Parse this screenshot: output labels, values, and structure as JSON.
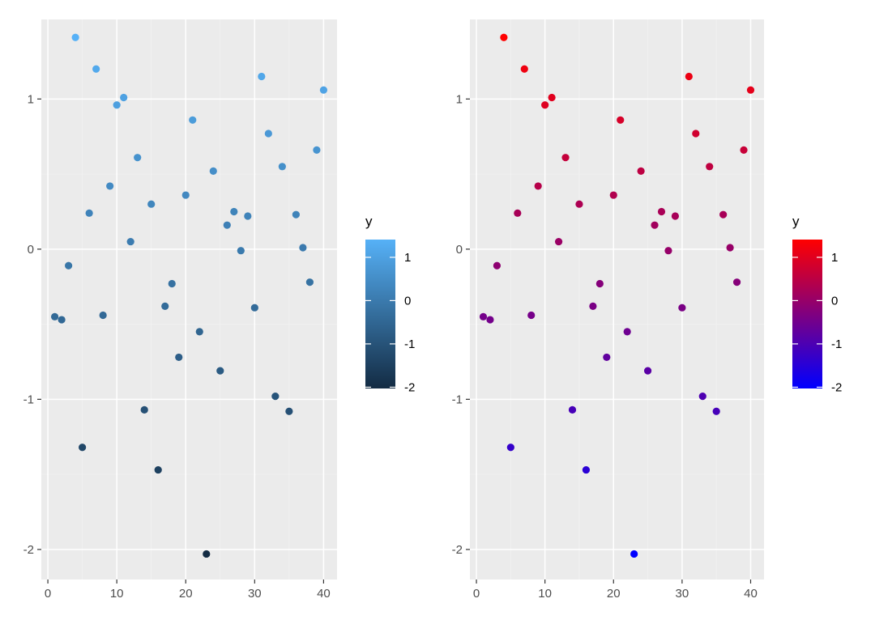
{
  "chart_data": [
    {
      "type": "scatter",
      "color_scale": {
        "low": "#132B43",
        "high": "#56B1F7"
      },
      "xlim": [
        -0.95,
        41.95
      ],
      "ylim": [
        -2.2,
        1.53
      ],
      "x_ticks": [
        0,
        10,
        20,
        30,
        40
      ],
      "y_ticks": [
        -2,
        -1,
        0,
        1
      ],
      "x_tick_labels": [
        "0",
        "10",
        "20",
        "30",
        "40"
      ],
      "y_tick_labels": [
        "-2",
        "-1",
        "0",
        "1"
      ],
      "legend": {
        "title": "y",
        "position": "right",
        "breaks": [
          1,
          0,
          -1,
          -2
        ],
        "labels": [
          "1",
          "0",
          "-1",
          "-2"
        ]
      },
      "x": [
        1,
        2,
        3,
        4,
        5,
        6,
        7,
        8,
        9,
        10,
        11,
        12,
        13,
        14,
        15,
        16,
        17,
        18,
        19,
        20,
        21,
        22,
        23,
        24,
        25,
        26,
        27,
        28,
        29,
        30,
        31,
        32,
        33,
        34,
        35,
        36,
        37,
        38,
        39,
        40
      ],
      "y": [
        -0.45,
        -0.47,
        -0.11,
        1.41,
        -1.32,
        0.24,
        1.2,
        -0.44,
        0.42,
        0.96,
        1.01,
        0.05,
        0.61,
        -1.07,
        0.3,
        -1.47,
        -0.38,
        -0.23,
        -0.72,
        0.36,
        0.86,
        -0.55,
        -2.03,
        0.52,
        -0.81,
        0.16,
        0.25,
        -0.01,
        0.22,
        -0.39,
        1.15,
        0.77,
        -0.98,
        0.55,
        -1.08,
        0.23,
        0.01,
        -0.22,
        0.66,
        1.06
      ]
    },
    {
      "type": "scatter",
      "color_scale": {
        "low": "#0000FF",
        "high": "#FF0000"
      },
      "xlim": [
        -0.95,
        41.95
      ],
      "ylim": [
        -2.2,
        1.53
      ],
      "x_ticks": [
        0,
        10,
        20,
        30,
        40
      ],
      "y_ticks": [
        -2,
        -1,
        0,
        1
      ],
      "x_tick_labels": [
        "0",
        "10",
        "20",
        "30",
        "40"
      ],
      "y_tick_labels": [
        "-2",
        "-1",
        "0",
        "1"
      ],
      "legend": {
        "title": "y",
        "position": "right",
        "breaks": [
          1,
          0,
          -1,
          -2
        ],
        "labels": [
          "1",
          "0",
          "-1",
          "-2"
        ]
      },
      "x": [
        1,
        2,
        3,
        4,
        5,
        6,
        7,
        8,
        9,
        10,
        11,
        12,
        13,
        14,
        15,
        16,
        17,
        18,
        19,
        20,
        21,
        22,
        23,
        24,
        25,
        26,
        27,
        28,
        29,
        30,
        31,
        32,
        33,
        34,
        35,
        36,
        37,
        38,
        39,
        40
      ],
      "y": [
        -0.45,
        -0.47,
        -0.11,
        1.41,
        -1.32,
        0.24,
        1.2,
        -0.44,
        0.42,
        0.96,
        1.01,
        0.05,
        0.61,
        -1.07,
        0.3,
        -1.47,
        -0.38,
        -0.23,
        -0.72,
        0.36,
        0.86,
        -0.55,
        -2.03,
        0.52,
        -0.81,
        0.16,
        0.25,
        -0.01,
        0.22,
        -0.39,
        1.15,
        0.77,
        -0.98,
        0.55,
        -1.08,
        0.23,
        0.01,
        -0.22,
        0.66,
        1.06
      ]
    }
  ]
}
